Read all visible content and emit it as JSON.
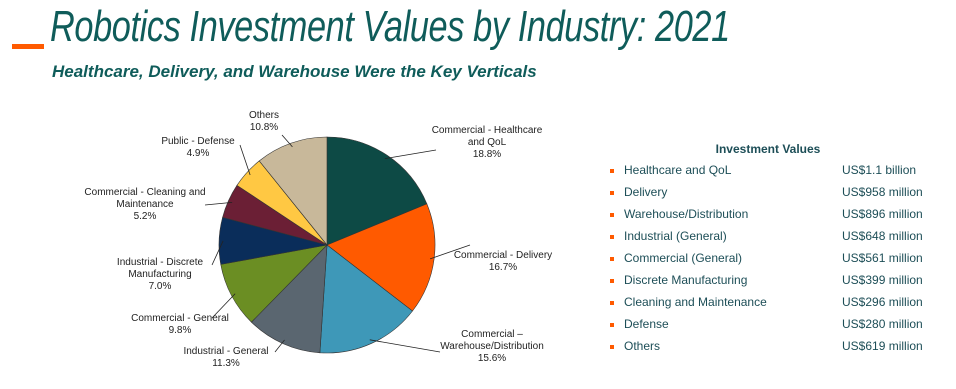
{
  "header": {
    "title": "Robotics Investment Values by Industry: 2021",
    "subtitle": "Healthcare, Delivery, and Warehouse Were the Key Verticals"
  },
  "chart_data": {
    "type": "pie",
    "categories": [
      "Commercial - Healthcare and QoL",
      "Commercial - Delivery",
      "Commercial – Warehouse/Distribution",
      "Industrial - General",
      "Commercial - General",
      "Industrial - Discrete Manufacturing",
      "Commercial - Cleaning and Maintenance",
      "Public - Defense",
      "Others"
    ],
    "values": [
      18.8,
      16.7,
      15.6,
      11.3,
      9.8,
      7.0,
      5.2,
      4.9,
      10.8
    ],
    "value_labels": [
      "18.8%",
      "16.7%",
      "15.6%",
      "11.3%",
      "9.8%",
      "7.0%",
      "5.2%",
      "4.9%",
      "10.8%"
    ],
    "colors": [
      "#0d4a45",
      "#ff5a00",
      "#3e98b8",
      "#5a6670",
      "#6b8e23",
      "#0a2d5a",
      "#6b1f35",
      "#ffc843",
      "#c8b89a"
    ]
  },
  "table": {
    "title": "Investment Values",
    "rows": [
      [
        "Healthcare and QoL",
        "US$1.1 billion"
      ],
      [
        "Delivery",
        "US$958 million"
      ],
      [
        "Warehouse/Distribution",
        "US$896 million"
      ],
      [
        "Industrial (General)",
        "US$648 million"
      ],
      [
        "Commercial (General)",
        "US$561 million"
      ],
      [
        "Discrete Manufacturing",
        "US$399 million"
      ],
      [
        "Cleaning and Maintenance",
        "US$296 million"
      ],
      [
        "Defense",
        "US$280 million"
      ],
      [
        "Others",
        "US$619 million"
      ]
    ]
  }
}
